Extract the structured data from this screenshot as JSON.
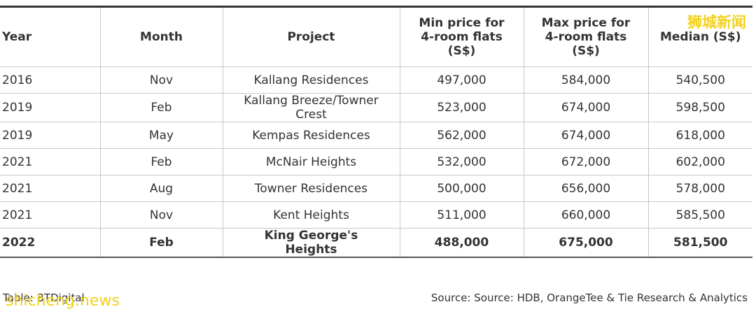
{
  "table": {
    "header": [
      "Year",
      "Month",
      "Project",
      "Min price for 4-room flats (S$)",
      "Max price for 4-room flats (S$)",
      "Median (S$)"
    ],
    "rows": [
      [
        "2016",
        "Nov",
        "Kallang Residences",
        "497,000",
        "584,000",
        "540,500"
      ],
      [
        "2019",
        "Feb",
        "Kallang Breeze/Towner Crest",
        "523,000",
        "674,000",
        "598,500"
      ],
      [
        "2019",
        "May",
        "Kempas Residences",
        "562,000",
        "674,000",
        "618,000"
      ],
      [
        "2021",
        "Feb",
        "McNair Heights",
        "532,000",
        "672,000",
        "602,000"
      ],
      [
        "2021",
        "Aug",
        "Towner Residences",
        "500,000",
        "656,000",
        "578,000"
      ],
      [
        "2021",
        "Nov",
        "Kent Heights",
        "511,000",
        "660,000",
        "585,500"
      ],
      [
        "2022",
        "Feb",
        "King George's Heights",
        "488,000",
        "675,000",
        "581,500"
      ]
    ]
  },
  "footer": {
    "credit": "Table: BTDigital",
    "source": "Source: Source: HDB, OrangeTee & Tie Research & Analytics"
  },
  "watermarks": {
    "top_right": "狮城新闻",
    "bottom_left": "shicheng.news"
  }
}
